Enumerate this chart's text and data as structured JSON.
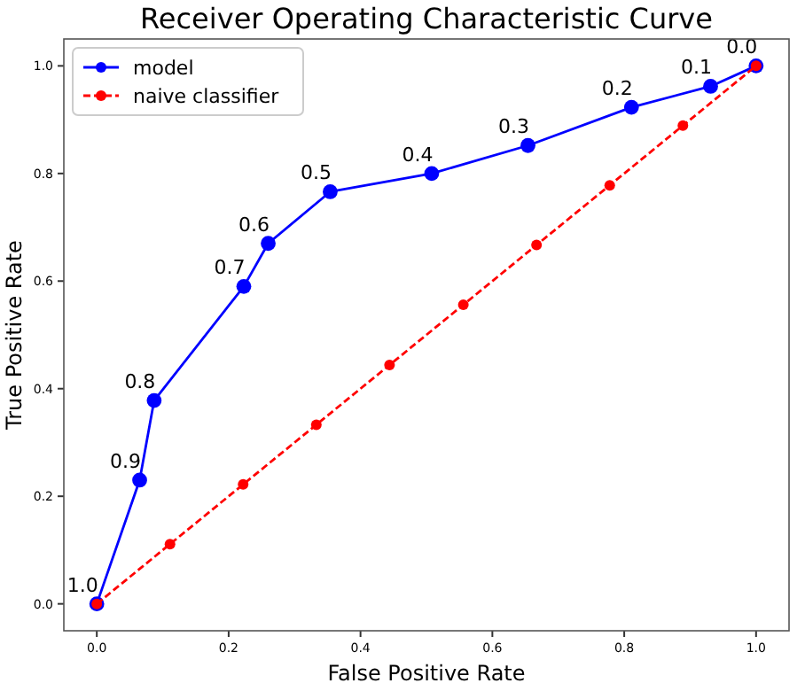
{
  "chart_data": {
    "type": "line",
    "title": "Receiver Operating Characteristic Curve",
    "xlabel": "False Positive Rate",
    "ylabel": "True Positive Rate",
    "xlim": [
      -0.05,
      1.05
    ],
    "ylim": [
      -0.05,
      1.05
    ],
    "xticks": [
      {
        "value": 0,
        "label": "0.0"
      },
      0.2,
      0.4,
      0.6,
      0.8,
      {
        "value": 1,
        "label": "1.0"
      }
    ],
    "yticks": [
      {
        "value": 0,
        "label": "0.0"
      },
      0.2,
      0.4,
      0.6,
      0.8,
      {
        "value": 1,
        "label": "1.0"
      }
    ],
    "series": [
      {
        "name": "model",
        "color": "#0000ff",
        "line_style": "solid",
        "x": [
          0,
          0.065,
          0.087,
          0.223,
          0.26,
          0.354,
          0.508,
          0.654,
          0.811,
          0.931,
          1
        ],
        "values": [
          0,
          0.23,
          0.378,
          0.59,
          0.67,
          0.766,
          0.8,
          0.852,
          0.923,
          0.962,
          1
        ]
      },
      {
        "name": "naive classifier",
        "color": "#ff0000",
        "line_style": "dashed",
        "x": [
          0,
          0.111,
          0.222,
          0.333,
          0.444,
          0.556,
          0.667,
          0.778,
          0.889,
          1
        ],
        "values": [
          0,
          0.111,
          0.222,
          0.333,
          0.444,
          0.556,
          0.667,
          0.778,
          0.889,
          1
        ]
      }
    ],
    "marker": "circle",
    "grid": false,
    "legend": "top left",
    "annotations": [
      {
        "text": "1.0",
        "x": 0,
        "y": 0
      },
      {
        "text": "0.9",
        "x": 0.065,
        "y": 0.23
      },
      {
        "text": "0.8",
        "x": 0.087,
        "y": 0.378
      },
      {
        "text": "0.7",
        "x": 0.223,
        "y": 0.59
      },
      {
        "text": "0.6",
        "x": 0.26,
        "y": 0.67
      },
      {
        "text": "0.5",
        "x": 0.354,
        "y": 0.766
      },
      {
        "text": "0.4",
        "x": 0.508,
        "y": 0.8
      },
      {
        "text": "0.3",
        "x": 0.654,
        "y": 0.852
      },
      {
        "text": "0.2",
        "x": 0.811,
        "y": 0.923
      },
      {
        "text": "0.1",
        "x": 0.931,
        "y": 0.962
      },
      {
        "text": "0.0",
        "x": 1,
        "y": 1
      }
    ]
  }
}
